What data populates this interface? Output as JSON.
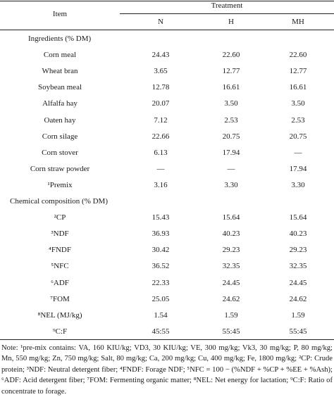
{
  "table": {
    "header": {
      "item": "Item",
      "treatment": "Treatment",
      "columns": [
        "N",
        "H",
        "MH"
      ]
    },
    "sections": [
      {
        "title": "Ingredients (% DM)",
        "rows": [
          {
            "item": "Corn meal",
            "values": [
              "24.43",
              "22.60",
              "22.60"
            ]
          },
          {
            "item": "Wheat bran",
            "values": [
              "3.65",
              "12.77",
              "12.77"
            ]
          },
          {
            "item": "Soybean meal",
            "values": [
              "12.78",
              "16.61",
              "16.61"
            ]
          },
          {
            "item": "Alfalfa hay",
            "values": [
              "20.07",
              "3.50",
              "3.50"
            ]
          },
          {
            "item": "Oaten hay",
            "values": [
              "7.12",
              "2.53",
              "2.53"
            ]
          },
          {
            "item": "Corn silage",
            "values": [
              "22.66",
              "20.75",
              "20.75"
            ]
          },
          {
            "item": "Corn stover",
            "values": [
              "6.13",
              "17.94",
              "—"
            ]
          },
          {
            "item": "Corn straw powder",
            "values": [
              "—",
              "—",
              "17.94"
            ]
          },
          {
            "item": "¹Premix",
            "values": [
              "3.16",
              "3.30",
              "3.30"
            ]
          }
        ]
      },
      {
        "title": "Chemical composition (% DM)",
        "rows": [
          {
            "item": "²CP",
            "values": [
              "15.43",
              "15.64",
              "15.64"
            ]
          },
          {
            "item": "³NDF",
            "values": [
              "36.93",
              "40.23",
              "40.23"
            ]
          },
          {
            "item": "⁴FNDF",
            "values": [
              "30.42",
              "29.23",
              "29.23"
            ]
          },
          {
            "item": "⁵NFC",
            "values": [
              "36.52",
              "32.35",
              "32.35"
            ]
          },
          {
            "item": "⁶ADF",
            "values": [
              "22.33",
              "24.45",
              "24.45"
            ]
          },
          {
            "item": "⁷FOM",
            "values": [
              "25.05",
              "24.62",
              "24.62"
            ]
          },
          {
            "item": "⁸NEL (MJ/kg)",
            "values": [
              "1.54",
              "1.59",
              "1.59"
            ]
          },
          {
            "item": "⁹C:F",
            "values": [
              "45:55",
              "55:45",
              "55:45"
            ]
          }
        ]
      }
    ],
    "note": "Note: ¹pre-mix contains: VA, 160 KIU/kg; VD3, 30 KIU/kg; VE, 300 mg/kg; Vk3, 30 mg/kg; P, 80 mg/kg; Mn, 550 mg/kg; Zn, 750 mg/kg; Salt, 80 mg/kg; Ca, 200 mg/kg; Cu, 400 mg/kg; Fe, 1800 mg/kg; ²CP: Crude protein; ³NDF: Neutral detergent fiber; ⁴FNDF: Forage NDF; ⁵NFC = 100 − (%NDF + %CP + %EE + %Ash); ⁶ADF: Acid detergent fiber; ⁷FOM: Fermenting organic matter; ⁸NEL: Net energy for lactation; ⁹C:F: Ratio of concentrate to forage."
  }
}
